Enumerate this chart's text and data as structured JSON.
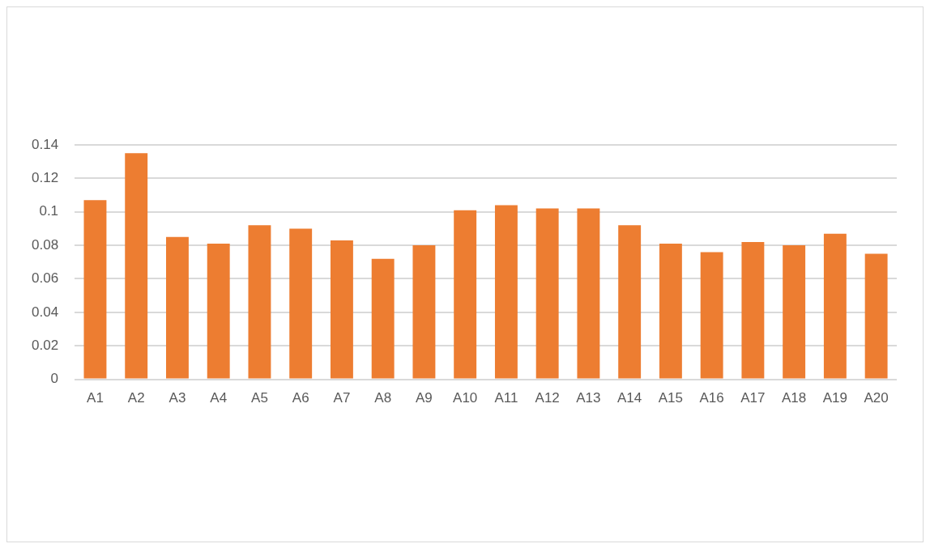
{
  "chart_data": {
    "type": "bar",
    "categories": [
      "A1",
      "A2",
      "A3",
      "A4",
      "A5",
      "A6",
      "A7",
      "A8",
      "A9",
      "A10",
      "A11",
      "A12",
      "A13",
      "A14",
      "A15",
      "A16",
      "A17",
      "A18",
      "A19",
      "A20"
    ],
    "values": [
      0.107,
      0.135,
      0.085,
      0.081,
      0.092,
      0.09,
      0.083,
      0.072,
      0.08,
      0.101,
      0.104,
      0.102,
      0.102,
      0.092,
      0.081,
      0.076,
      0.082,
      0.08,
      0.087,
      0.075
    ],
    "color": "#ed7d31",
    "ylim": [
      0,
      0.14
    ],
    "yticks": [
      0,
      0.02,
      0.04,
      0.06,
      0.08,
      0.1,
      0.12,
      0.14
    ],
    "grid": "y",
    "legend": false
  }
}
